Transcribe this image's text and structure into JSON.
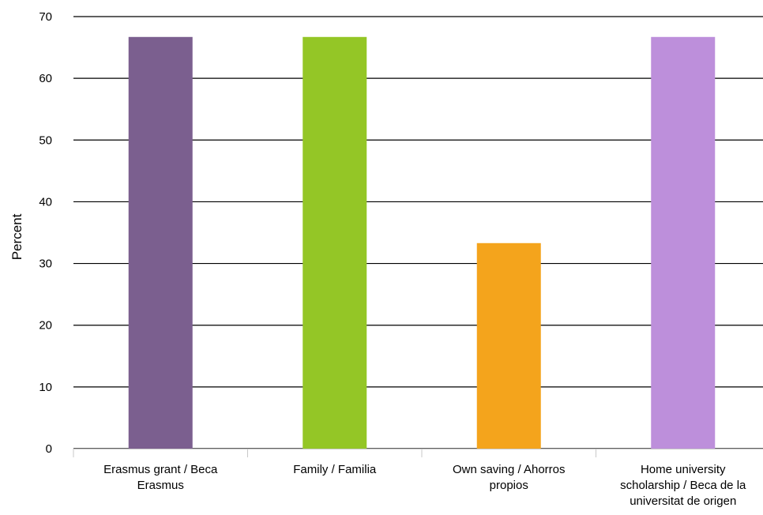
{
  "chart_data": {
    "type": "bar",
    "title": "",
    "xlabel": "",
    "ylabel": "Percent",
    "ylim": [
      0,
      70
    ],
    "yticks": [
      0,
      10,
      20,
      30,
      40,
      50,
      60,
      70
    ],
    "grid": true,
    "legend": "none",
    "categories": [
      [
        "Erasmus grant / Beca",
        "Erasmus"
      ],
      [
        "Family / Familia"
      ],
      [
        "Own saving / Ahorros",
        "propios"
      ],
      [
        "Home university",
        "scholarship / Beca de la",
        "universitat de origen"
      ]
    ],
    "values": [
      66.7,
      66.7,
      33.3,
      66.7
    ],
    "colors": [
      "#7b5f8f",
      "#94c626",
      "#f4a41c",
      "#bd8fdb"
    ]
  }
}
